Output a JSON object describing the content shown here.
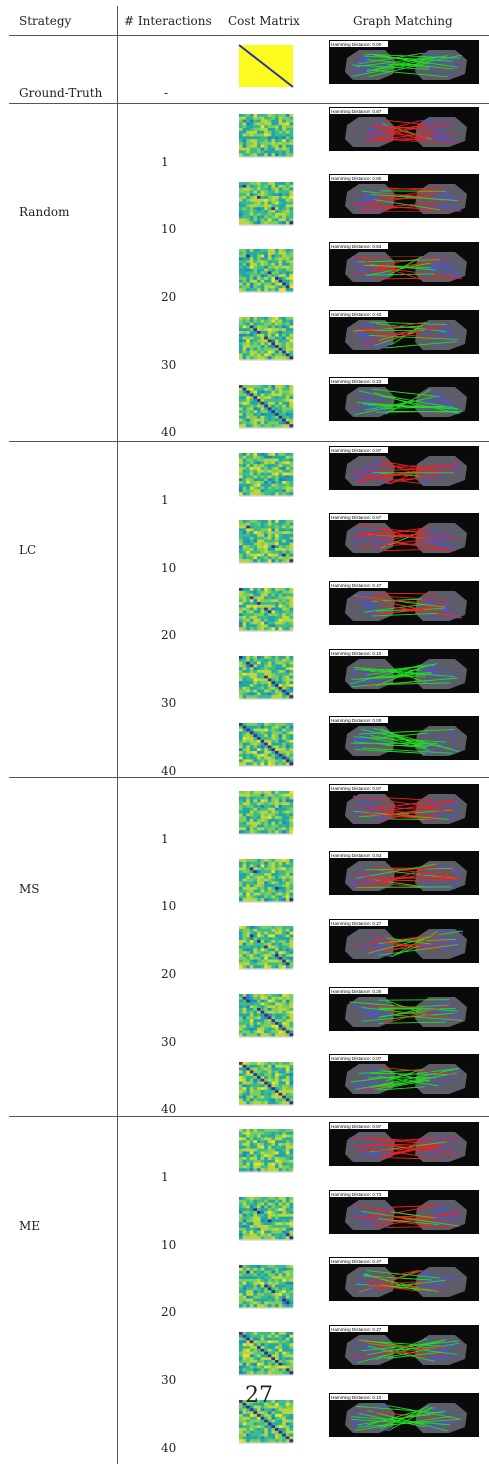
{
  "headers": {
    "strategy": "Strategy",
    "interactions": "# Interactions",
    "cost_matrix": "Cost Matrix",
    "graph_matching": "Graph Matching"
  },
  "ground_truth": {
    "strategy": "Ground-Truth",
    "interactions": "-",
    "distance_label": "Hamming Distance: 0.00"
  },
  "groups": [
    {
      "strategy": "Random",
      "rows": [
        {
          "interactions": "1",
          "distance_label": "Hamming Distance: 0.87"
        },
        {
          "interactions": "10",
          "distance_label": "Hamming Distance: 0.80"
        },
        {
          "interactions": "20",
          "distance_label": "Hamming Distance: 0.63"
        },
        {
          "interactions": "30",
          "distance_label": "Hamming Distance: 0.43"
        },
        {
          "interactions": "40",
          "distance_label": "Hamming Distance: 0.23"
        }
      ]
    },
    {
      "strategy": "LC",
      "rows": [
        {
          "interactions": "1",
          "distance_label": "Hamming Distance: 0.87"
        },
        {
          "interactions": "10",
          "distance_label": "Hamming Distance: 0.67"
        },
        {
          "interactions": "20",
          "distance_label": "Hamming Distance: 0.47"
        },
        {
          "interactions": "30",
          "distance_label": "Hamming Distance: 0.10"
        },
        {
          "interactions": "40",
          "distance_label": "Hamming Distance: 0.00"
        }
      ]
    },
    {
      "strategy": "MS",
      "rows": [
        {
          "interactions": "1",
          "distance_label": "Hamming Distance: 0.87"
        },
        {
          "interactions": "10",
          "distance_label": "Hamming Distance: 0.53"
        },
        {
          "interactions": "20",
          "distance_label": "Hamming Distance: 0.27"
        },
        {
          "interactions": "30",
          "distance_label": "Hamming Distance: 0.20"
        },
        {
          "interactions": "40",
          "distance_label": "Hamming Distance: 0.07"
        }
      ]
    },
    {
      "strategy": "ME",
      "rows": [
        {
          "interactions": "1",
          "distance_label": "Hamming Distance: 0.87"
        },
        {
          "interactions": "10",
          "distance_label": "Hamming Distance: 0.73"
        },
        {
          "interactions": "20",
          "distance_label": "Hamming Distance: 0.47"
        },
        {
          "interactions": "30",
          "distance_label": "Hamming Distance: 0.27"
        },
        {
          "interactions": "40",
          "distance_label": "Hamming Distance: 0.10"
        }
      ]
    }
  ],
  "page_number": "27",
  "colors": {
    "match_correct": "#22dd22",
    "match_incorrect": "#ee2222",
    "graph_edges": "#4b55d8",
    "gt_matrix_fill": "#fbfb1e",
    "gt_matrix_diagonal": "#333399"
  }
}
